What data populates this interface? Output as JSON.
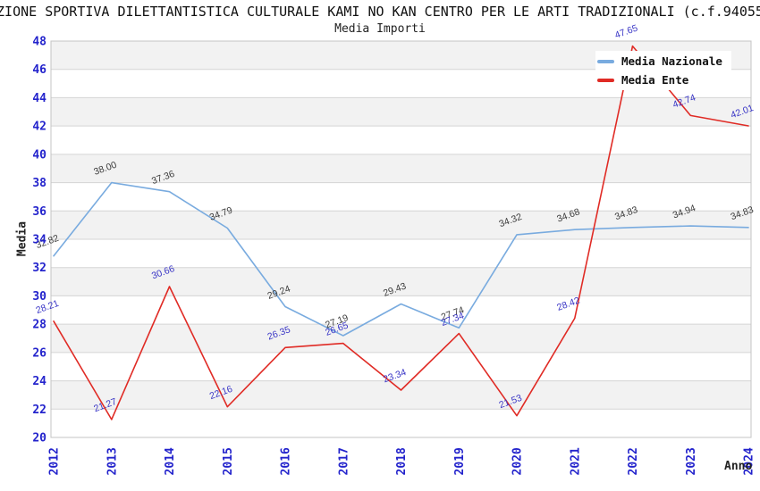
{
  "header": {
    "title": "ZIONE SPORTIVA DILETTANTISTICA CULTURALE KAMI NO KAN CENTRO PER LE ARTI TRADIZIONALI (c.f.94055",
    "subtitle": "Media Importi"
  },
  "chart_data": {
    "type": "line",
    "title": "Media Importi",
    "x": [
      "2012",
      "2013",
      "2014",
      "2015",
      "2016",
      "2017",
      "2018",
      "2019",
      "2020",
      "2021",
      "2022",
      "2023",
      "2024"
    ],
    "series": [
      {
        "name": "Media Nazionale",
        "color": "#79ABDF",
        "label_color": "#3C3C3C",
        "values": [
          32.82,
          38.0,
          37.36,
          34.79,
          29.24,
          27.19,
          29.43,
          27.74,
          34.32,
          34.68,
          34.83,
          34.94,
          34.83
        ]
      },
      {
        "name": "Media Ente",
        "color": "#E02B25",
        "label_color": "#3A36C6",
        "values": [
          28.21,
          21.27,
          30.66,
          22.16,
          26.35,
          26.65,
          23.34,
          27.34,
          21.53,
          28.42,
          47.65,
          42.74,
          42.01
        ]
      }
    ],
    "xlabel": "Anno",
    "ylabel": "Media",
    "ylim": [
      20,
      48
    ],
    "y_tick_step": 2,
    "grid": "horizontal-with-alternating-bands",
    "legend_position": "top-right",
    "band_fill": "#F2F2F2",
    "grid_color": "#D5D5D5",
    "border_color": "#C4C4C4",
    "tick_label_color": "#2323CC"
  }
}
